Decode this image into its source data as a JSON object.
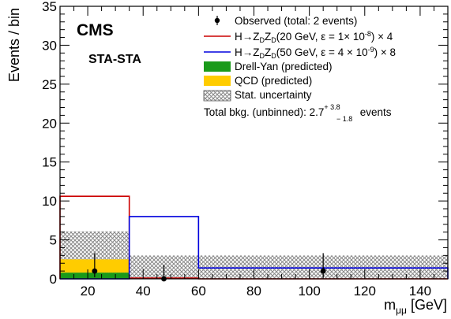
{
  "chart_data": {
    "type": "histogram",
    "experiment_label": "CMS",
    "subtitle": "STA-STA",
    "xlabel": "m",
    "xlabel_subscript": "μμ",
    "xlabel_unit": " [GeV]",
    "ylabel": "Events / bin",
    "xlim": [
      10,
      150
    ],
    "ylim": [
      0,
      35
    ],
    "x_ticks": [
      20,
      40,
      60,
      80,
      100,
      120,
      140
    ],
    "y_ticks": [
      0,
      5,
      10,
      15,
      20,
      25,
      30,
      35
    ],
    "bin_edges": [
      10,
      35,
      60,
      150
    ],
    "backgrounds": {
      "drell_yan": {
        "name": "Drell-Yan (predicted)",
        "color": "#1a9a1a",
        "values": [
          0.8,
          0.0,
          0.0
        ]
      },
      "qcd": {
        "name": "QCD (predicted)",
        "color": "#ffcc00",
        "values": [
          1.7,
          0.0,
          0.0
        ]
      }
    },
    "stat_uncertainty": {
      "name": "Stat. uncertainty",
      "color": "#888888",
      "lower": [
        0.0,
        0.0,
        0.0
      ],
      "upper": [
        6.1,
        3.0,
        3.0
      ]
    },
    "signals": [
      {
        "name_parts": [
          "H→Z",
          "D",
          "Z",
          "D",
          "(20 GeV, ε = 1× 10",
          "-8",
          ") × 4"
        ],
        "color": "#cc0000",
        "values": [
          10.6,
          0.1,
          0.0
        ]
      },
      {
        "name_parts": [
          "H→Z",
          "D",
          "Z",
          "D",
          "(50 GeV, ε = 4 × 10",
          "-9",
          ") × 8"
        ],
        "color": "#0000dd",
        "values": [
          0.0,
          8.0,
          1.4
        ]
      }
    ],
    "observed": {
      "name": "Observed (total: 2 events)",
      "points": [
        {
          "x": 22.5,
          "y": 1.0,
          "err_low": 0.8,
          "err_high": 2.3
        },
        {
          "x": 47.5,
          "y": 0.0,
          "err_low": 0.0,
          "err_high": 1.8
        },
        {
          "x": 105.0,
          "y": 1.0,
          "err_low": 0.8,
          "err_high": 2.3
        }
      ]
    },
    "total_bkg": {
      "prefix": "Total bkg. (unbinned): 2.7",
      "up": "+ 3.8",
      "down": "− 1.8",
      "suffix": " events"
    }
  }
}
